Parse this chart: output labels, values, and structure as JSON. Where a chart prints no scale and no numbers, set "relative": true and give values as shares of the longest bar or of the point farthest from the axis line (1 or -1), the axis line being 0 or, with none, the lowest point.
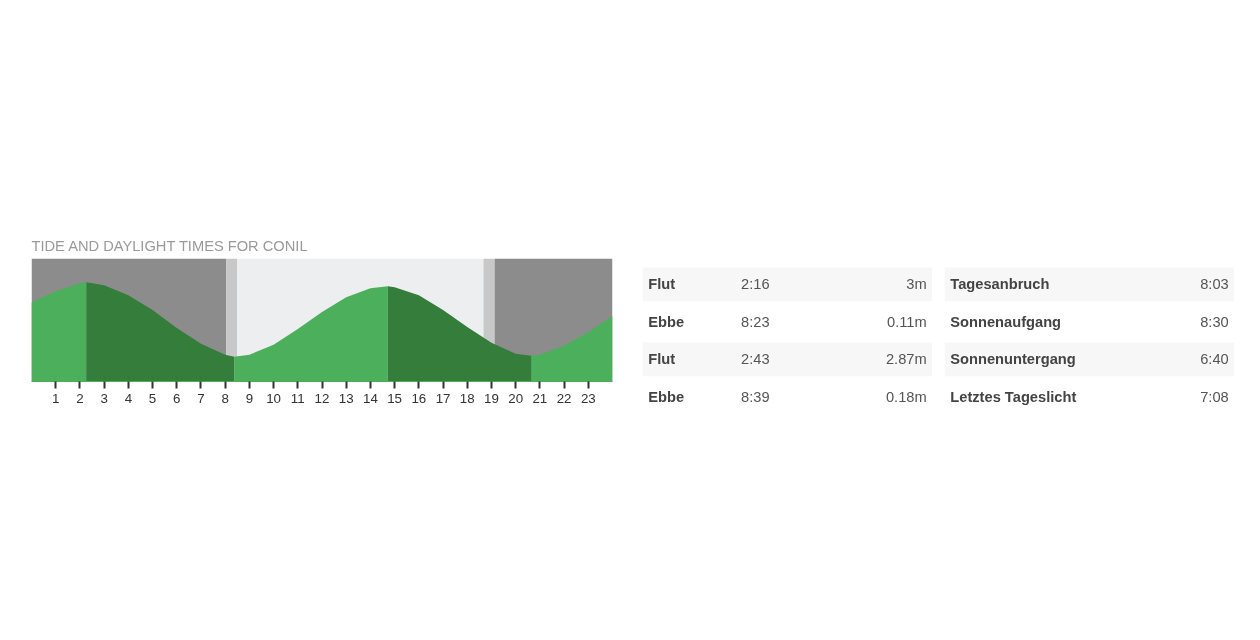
{
  "chart_data": [
    {
      "type": "area",
      "title": "TIDE AND DAYLIGHT TIMES FOR CONIL",
      "relative": true,
      "xlim": [
        0,
        24
      ],
      "xticks": [
        1,
        2,
        3,
        4,
        5,
        6,
        7,
        8,
        9,
        10,
        11,
        12,
        13,
        14,
        15,
        16,
        17,
        18,
        19,
        20,
        21,
        22,
        23
      ],
      "grid": false,
      "series": [
        {
          "color": "#4caf5b",
          "x": [
            0,
            1,
            2,
            2.27
          ],
          "values": [
            0.8,
            0.91,
            0.99,
            1.0
          ]
        },
        {
          "color": "#347d3a",
          "x": [
            2.27,
            3,
            4,
            5,
            6,
            7,
            8,
            8.38
          ],
          "values": [
            1.0,
            0.97,
            0.87,
            0.72,
            0.54,
            0.38,
            0.27,
            0.25
          ]
        },
        {
          "color": "#4caf5b",
          "x": [
            8.38,
            9,
            10,
            11,
            12,
            13,
            14,
            14.72
          ],
          "values": [
            0.25,
            0.27,
            0.37,
            0.53,
            0.7,
            0.85,
            0.94,
            0.96
          ]
        },
        {
          "color": "#347d3a",
          "x": [
            14.72,
            15,
            16,
            17,
            18,
            19,
            20,
            20.65
          ],
          "values": [
            0.96,
            0.95,
            0.87,
            0.72,
            0.55,
            0.39,
            0.28,
            0.26
          ]
        },
        {
          "color": "#4caf5b",
          "x": [
            20.65,
            21,
            22,
            23,
            24
          ],
          "values": [
            0.26,
            0.27,
            0.36,
            0.5,
            0.66
          ]
        }
      ],
      "bands": [
        {
          "axis": "x",
          "from": 0,
          "to": 8.05,
          "color": "#8c8c8c"
        },
        {
          "axis": "x",
          "from": 8.05,
          "to": 8.5,
          "color": "#c8c8c8"
        },
        {
          "axis": "x",
          "from": 8.5,
          "to": 18.67,
          "color": "#eceeef"
        },
        {
          "axis": "x",
          "from": 18.67,
          "to": 19.13,
          "color": "#c8c8c8"
        },
        {
          "axis": "x",
          "from": 19.13,
          "to": 24,
          "color": "#8c8c8c"
        }
      ]
    },
    {
      "type": "other",
      "categories": [
        "Flut",
        "Ebbe",
        "Flut",
        "Ebbe"
      ],
      "series": [
        {
          "colors": [
            "#f7f7f7",
            "#ffffff",
            "#f7f7f7",
            "#ffffff"
          ],
          "values": [
            2.27,
            8.38,
            2.72,
            8.65
          ],
          "value_labels": [
            "2:16",
            "8:23",
            "2:43",
            "8:39"
          ]
        },
        {
          "values": [
            3,
            0.11,
            2.87,
            0.18
          ],
          "value_labels": [
            "3m",
            "0.11m",
            "2.87m",
            "0.18m"
          ]
        }
      ]
    },
    {
      "type": "other",
      "categories": [
        "Tagesanbruch",
        "Sonnenaufgang",
        "Sonnenuntergang",
        "Letztes Tageslicht"
      ],
      "series": [
        {
          "colors": [
            "#f7f7f7",
            "#ffffff",
            "#f7f7f7",
            "#ffffff"
          ],
          "values": [
            8.05,
            8.5,
            6.67,
            7.13
          ],
          "value_labels": [
            "8:03",
            "8:30",
            "6:40",
            "7:08"
          ]
        }
      ]
    }
  ]
}
